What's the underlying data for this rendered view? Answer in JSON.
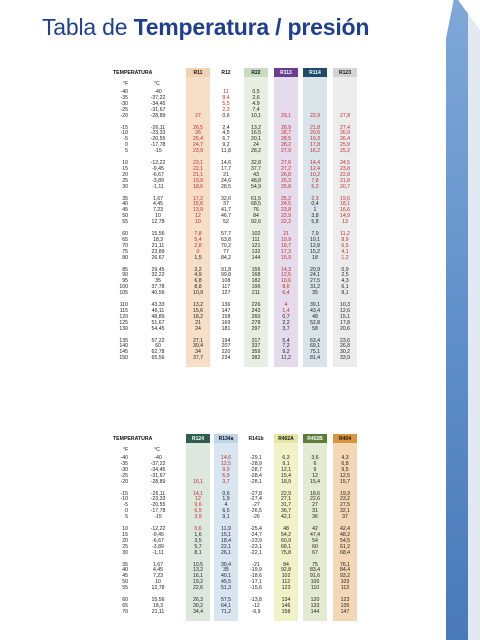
{
  "title": {
    "normal": "Tabla de ",
    "bold": "Temperatura / presión"
  },
  "tables": [
    {
      "top": 68,
      "label": "TEMPERATURA",
      "unit_f": "°F",
      "unit_c": "°C",
      "columns": [
        {
          "name": "R11",
          "band": "#f6dfc6",
          "head": "#f2d2b3",
          "head_text": "#111"
        },
        {
          "name": "R12",
          "band": "#ffffff",
          "head": "#ffffff",
          "head_text": "#111"
        },
        {
          "name": "R22",
          "band": "#e6efe1",
          "head": "#c8dcc0",
          "head_text": "#111"
        },
        {
          "name": "R113",
          "band": "#e4dbec",
          "head": "#6a3d8f",
          "head_text": "#ffffff"
        },
        {
          "name": "R114",
          "band": "#d9e3ea",
          "head": "#1e4a6b",
          "head_text": "#ffffff"
        },
        {
          "name": "R123",
          "band": "#ececec",
          "head": "#d3d3d3",
          "head_text": "#111"
        }
      ],
      "groups": [
        [
          [
            "-40",
            "-40",
            "",
            "11",
            "0,5",
            "",
            "",
            ""
          ],
          [
            "-35",
            "-37,22",
            "",
            "8,4",
            "2,6",
            "",
            "",
            ""
          ],
          [
            "-30",
            "-34,45",
            "",
            "5,5",
            "4,9",
            "",
            "",
            ""
          ],
          [
            "-25",
            "-31,67",
            "",
            "2,3",
            "7,4",
            "",
            "",
            ""
          ],
          [
            "-20",
            "-28,89",
            "27",
            "0,6",
            "10,1",
            "29,1",
            "22,9",
            "27,8"
          ]
        ],
        [
          [
            "-15",
            "-26,11",
            "26,5",
            "2,4",
            "13,2",
            "28,9",
            "21,8",
            "27,4"
          ],
          [
            "-10",
            "-23,33",
            "26",
            "4,5",
            "16,5",
            "28,7",
            "20,6",
            "26,9"
          ],
          [
            "-5",
            "-20,55",
            "25,4",
            "6,7",
            "20,1",
            "28,5",
            "19,3",
            "26,4"
          ],
          [
            "0",
            "-17,78",
            "24,7",
            "9,2",
            "24",
            "28,2",
            "17,8",
            "25,9"
          ],
          [
            "5",
            "-15",
            "23,9",
            "11,8",
            "28,2",
            "27,9",
            "16,2",
            "25,2"
          ]
        ],
        [
          [
            "10",
            "-12,22",
            "23,1",
            "14,6",
            "32,8",
            "27,6",
            "14,4",
            "24,5"
          ],
          [
            "15",
            "-9,45",
            "22,1",
            "17,7",
            "37,7",
            "27,2",
            "12,4",
            "23,8"
          ],
          [
            "20",
            "-6,67",
            "21,1",
            "21",
            "43",
            "26,8",
            "10,2",
            "22,8"
          ],
          [
            "25",
            "-3,89",
            "19,9",
            "24,6",
            "48,8",
            "26,3",
            "7,8",
            "21,8"
          ],
          [
            "30",
            "-1,11",
            "18,6",
            "28,5",
            "54,9",
            "25,8",
            "5,2",
            "20,7"
          ]
        ],
        [
          [
            "35",
            "1,67",
            "17,2",
            "32,6",
            "61,5",
            "25,2",
            "2,3",
            "19,5"
          ],
          [
            "40",
            "4,45",
            "15,6",
            "37",
            "68,5",
            "24,5",
            "0,4",
            "18,1"
          ],
          [
            "45",
            "7,23",
            "13,9",
            "41,7",
            "76",
            "23,8",
            "1",
            "16,6"
          ],
          [
            "50",
            "10",
            "12",
            "46,7",
            "84",
            "22,9",
            "3,8",
            "14,9"
          ],
          [
            "55",
            "12,78",
            "10",
            "52",
            "92,6",
            "22,2",
            "5,8",
            "13"
          ]
        ],
        [
          [
            "60",
            "15,56",
            "7,8",
            "57,7",
            "102",
            "21",
            "7,9",
            "11,2"
          ],
          [
            "65",
            "18,3",
            "5,4",
            "63,8",
            "111",
            "19,9",
            "10,1",
            "8,9"
          ],
          [
            "70",
            "21,11",
            "2,8",
            "70,2",
            "121",
            "18,7",
            "12,8",
            "6,5"
          ],
          [
            "75",
            "23,89",
            "0",
            "77",
            "132",
            "17,3",
            "15,2",
            "4,1"
          ],
          [
            "80",
            "26,67",
            "1,5",
            "84,2",
            "144",
            "15,9",
            "18",
            "1,2"
          ]
        ],
        [
          [
            "85",
            "29,45",
            "3,2",
            "91,8",
            "156",
            "14,3",
            "20,9",
            "0,9"
          ],
          [
            "90",
            "32,22",
            "4,9",
            "99,8",
            "168",
            "12,5",
            "24,1",
            "2,5"
          ],
          [
            "95",
            "35",
            "6,8",
            "108",
            "182",
            "10,6",
            "27,5",
            "4,3"
          ],
          [
            "100",
            "37,78",
            "8,8",
            "117",
            "196",
            "8,6",
            "31,2",
            "6,1"
          ],
          [
            "105",
            "40,56",
            "10,9",
            "127",
            "211",
            "6,4",
            "35",
            "8,1"
          ]
        ],
        [
          [
            "110",
            "43,33",
            "13,2",
            "136",
            "226",
            "4",
            "39,1",
            "10,3"
          ],
          [
            "115",
            "46,11",
            "15,6",
            "147",
            "243",
            "1,4",
            "43,4",
            "12,6"
          ],
          [
            "120",
            "48,89",
            "18,2",
            "158",
            "260",
            "0,7",
            "48",
            "15,1"
          ],
          [
            "125",
            "51,67",
            "21",
            "169",
            "278",
            "2,2",
            "52,8",
            "17,8"
          ],
          [
            "130",
            "54,45",
            "24",
            "181",
            "297",
            "3,7",
            "58",
            "20,6"
          ]
        ],
        [
          [
            "135",
            "57,22",
            "27,1",
            "194",
            "317",
            "5,4",
            "63,4",
            "23,6"
          ],
          [
            "140",
            "60",
            "30,4",
            "207",
            "337",
            "7,2",
            "69,1",
            "26,8"
          ],
          [
            "145",
            "62,78",
            "34",
            "220",
            "359",
            "9,2",
            "75,1",
            "30,2"
          ],
          [
            "150",
            "65,56",
            "37,7",
            "234",
            "382",
            "11,2",
            "81,4",
            "33,9"
          ]
        ]
      ],
      "red_cells": [
        [
          0,
          0,
          3
        ],
        [
          0,
          1,
          3
        ],
        [
          0,
          2,
          3
        ],
        [
          0,
          3,
          3
        ],
        [
          0,
          4,
          2
        ],
        [
          0,
          4,
          5
        ],
        [
          0,
          4,
          6
        ],
        [
          0,
          4,
          7
        ],
        [
          1,
          0,
          2
        ],
        [
          1,
          1,
          2
        ],
        [
          1,
          2,
          2
        ],
        [
          1,
          3,
          2
        ],
        [
          1,
          4,
          2
        ],
        [
          1,
          0,
          5
        ],
        [
          1,
          1,
          5
        ],
        [
          1,
          2,
          5
        ],
        [
          1,
          3,
          5
        ],
        [
          1,
          4,
          5
        ],
        [
          1,
          0,
          6
        ],
        [
          1,
          1,
          6
        ],
        [
          1,
          2,
          6
        ],
        [
          1,
          3,
          6
        ],
        [
          1,
          4,
          6
        ],
        [
          1,
          0,
          7
        ],
        [
          1,
          1,
          7
        ],
        [
          1,
          2,
          7
        ],
        [
          1,
          3,
          7
        ],
        [
          1,
          4,
          7
        ],
        [
          2,
          0,
          2
        ],
        [
          2,
          1,
          2
        ],
        [
          2,
          2,
          2
        ],
        [
          2,
          3,
          2
        ],
        [
          2,
          4,
          2
        ],
        [
          2,
          0,
          5
        ],
        [
          2,
          1,
          5
        ],
        [
          2,
          2,
          5
        ],
        [
          2,
          3,
          5
        ],
        [
          2,
          4,
          5
        ],
        [
          2,
          0,
          6
        ],
        [
          2,
          1,
          6
        ],
        [
          2,
          2,
          6
        ],
        [
          2,
          3,
          6
        ],
        [
          2,
          4,
          6
        ],
        [
          2,
          0,
          7
        ],
        [
          2,
          1,
          7
        ],
        [
          2,
          2,
          7
        ],
        [
          2,
          3,
          7
        ],
        [
          2,
          4,
          7
        ],
        [
          3,
          0,
          2
        ],
        [
          3,
          1,
          2
        ],
        [
          3,
          2,
          2
        ],
        [
          3,
          3,
          2
        ],
        [
          3,
          4,
          2
        ],
        [
          3,
          0,
          5
        ],
        [
          3,
          1,
          5
        ],
        [
          3,
          2,
          5
        ],
        [
          3,
          3,
          5
        ],
        [
          3,
          4,
          5
        ],
        [
          3,
          0,
          6
        ],
        [
          3,
          0,
          7
        ],
        [
          3,
          1,
          7
        ],
        [
          3,
          2,
          7
        ],
        [
          3,
          3,
          7
        ],
        [
          3,
          4,
          7
        ],
        [
          4,
          0,
          2
        ],
        [
          4,
          1,
          2
        ],
        [
          4,
          2,
          2
        ],
        [
          4,
          3,
          2
        ],
        [
          4,
          0,
          5
        ],
        [
          4,
          1,
          5
        ],
        [
          4,
          2,
          5
        ],
        [
          4,
          3,
          5
        ],
        [
          4,
          4,
          5
        ],
        [
          4,
          0,
          7
        ],
        [
          4,
          1,
          7
        ],
        [
          4,
          2,
          7
        ],
        [
          4,
          3,
          7
        ],
        [
          4,
          4,
          7
        ],
        [
          5,
          0,
          5
        ],
        [
          5,
          1,
          5
        ],
        [
          5,
          2,
          5
        ],
        [
          5,
          3,
          5
        ],
        [
          5,
          4,
          5
        ],
        [
          6,
          0,
          5
        ],
        [
          6,
          1,
          5
        ]
      ]
    },
    {
      "top": 434,
      "label": "TEMPERATURA",
      "unit_f": "°F",
      "unit_c": "°C",
      "columns": [
        {
          "name": "R124",
          "band": "#dce8de",
          "head": "#2f5e4e",
          "head_text": "#ffffff"
        },
        {
          "name": "R134a",
          "band": "#d7e6f1",
          "head": "#bcd6e8",
          "head_text": "#111"
        },
        {
          "name": "R141b",
          "band": "#ffffff",
          "head": "#ffffff",
          "head_text": "#111"
        },
        {
          "name": "R402A",
          "band": "#f1f2c8",
          "head": "#e4e6a4",
          "head_text": "#111"
        },
        {
          "name": "R402B",
          "band": "#e2ead1",
          "head": "#5c7d3a",
          "head_text": "#ffffff"
        },
        {
          "name": "R404",
          "band": "#f4d7b4",
          "head": "#d9963f",
          "head_text": "#111"
        }
      ],
      "groups": [
        [
          [
            "-40",
            "-40",
            "",
            "14,6",
            "-29,1",
            "6,3",
            "3,6",
            "4,3"
          ],
          [
            "-35",
            "-37,22",
            "",
            "12,5",
            "-28,9",
            "9,1",
            "6",
            "6,8"
          ],
          [
            "-30",
            "-34,45",
            "",
            "9,9",
            "-28,7",
            "12,1",
            "9",
            "9,5"
          ],
          [
            "-25",
            "-31,67",
            "",
            "6,9",
            "-28,4",
            "15,4",
            "12",
            "12,5"
          ],
          [
            "-20",
            "-28,89",
            "16,1",
            "3,7",
            "-28,1",
            "18,9",
            "15,4",
            "15,7"
          ]
        ],
        [
          [
            "-15",
            "-26,11",
            "14,1",
            "0,6",
            "-27,8",
            "22,9",
            "18,6",
            "19,3"
          ],
          [
            "-10",
            "-23,33",
            "12",
            "1,9",
            "-27,4",
            "27,1",
            "22,6",
            "23,2"
          ],
          [
            "-5",
            "-20,55",
            "9,6",
            "4",
            "-27",
            "31,7",
            "27",
            "27,5"
          ],
          [
            "0",
            "-17,78",
            "6,9",
            "6,5",
            "-26,5",
            "36,7",
            "31",
            "32,1"
          ],
          [
            "5",
            "-15",
            "3,9",
            "9,1",
            "-26",
            "42,1",
            "36",
            "37"
          ]
        ],
        [
          [
            "10",
            "-12,22",
            "0,6",
            "11,9",
            "-25,4",
            "48",
            "42",
            "42,4"
          ],
          [
            "15",
            "-9,45",
            "1,6",
            "15,1",
            "-24,7",
            "54,2",
            "47,4",
            "48,2"
          ],
          [
            "20",
            "-6,67",
            "3,5",
            "18,4",
            "-23,9",
            "60,9",
            "54",
            "54,5"
          ],
          [
            "25",
            "-3,89",
            "5,7",
            "22,1",
            "-23,1",
            "68,1",
            "60",
            "61,2"
          ],
          [
            "30",
            "-1,11",
            "8,1",
            "26,1",
            "-22,1",
            "75,8",
            "67",
            "68,4"
          ]
        ],
        [
          [
            "35",
            "1,67",
            "10,5",
            "30,4",
            "-21",
            "84",
            "75",
            "76,1"
          ],
          [
            "40",
            "4,45",
            "13,2",
            "35",
            "-19,9",
            "92,8",
            "83,4",
            "84,4"
          ],
          [
            "45",
            "7,23",
            "16,1",
            "40,1",
            "-18,6",
            "102",
            "91,6",
            "93,2"
          ],
          [
            "50",
            "10",
            "19,2",
            "45,5",
            "-17,1",
            "112",
            "100",
            "103"
          ],
          [
            "55",
            "12,78",
            "22,6",
            "51,3",
            "-15,6",
            "123",
            "110",
            "113"
          ]
        ],
        [
          [
            "60",
            "15,56",
            "26,3",
            "57,5",
            "-13,8",
            "134",
            "120",
            "123"
          ],
          [
            "65",
            "18,3",
            "30,2",
            "64,1",
            "-12",
            "146",
            "133",
            "135"
          ],
          [
            "70",
            "21,11",
            "34,4",
            "71,2",
            "-9,9",
            "158",
            "144",
            "147"
          ]
        ]
      ],
      "red_cells": [
        [
          0,
          4,
          2
        ],
        [
          0,
          0,
          3
        ],
        [
          0,
          1,
          3
        ],
        [
          0,
          2,
          3
        ],
        [
          0,
          3,
          3
        ],
        [
          0,
          4,
          3
        ],
        [
          1,
          0,
          2
        ],
        [
          1,
          1,
          2
        ],
        [
          1,
          2,
          2
        ],
        [
          1,
          3,
          2
        ],
        [
          1,
          4,
          2
        ],
        [
          2,
          0,
          2
        ]
      ]
    }
  ]
}
